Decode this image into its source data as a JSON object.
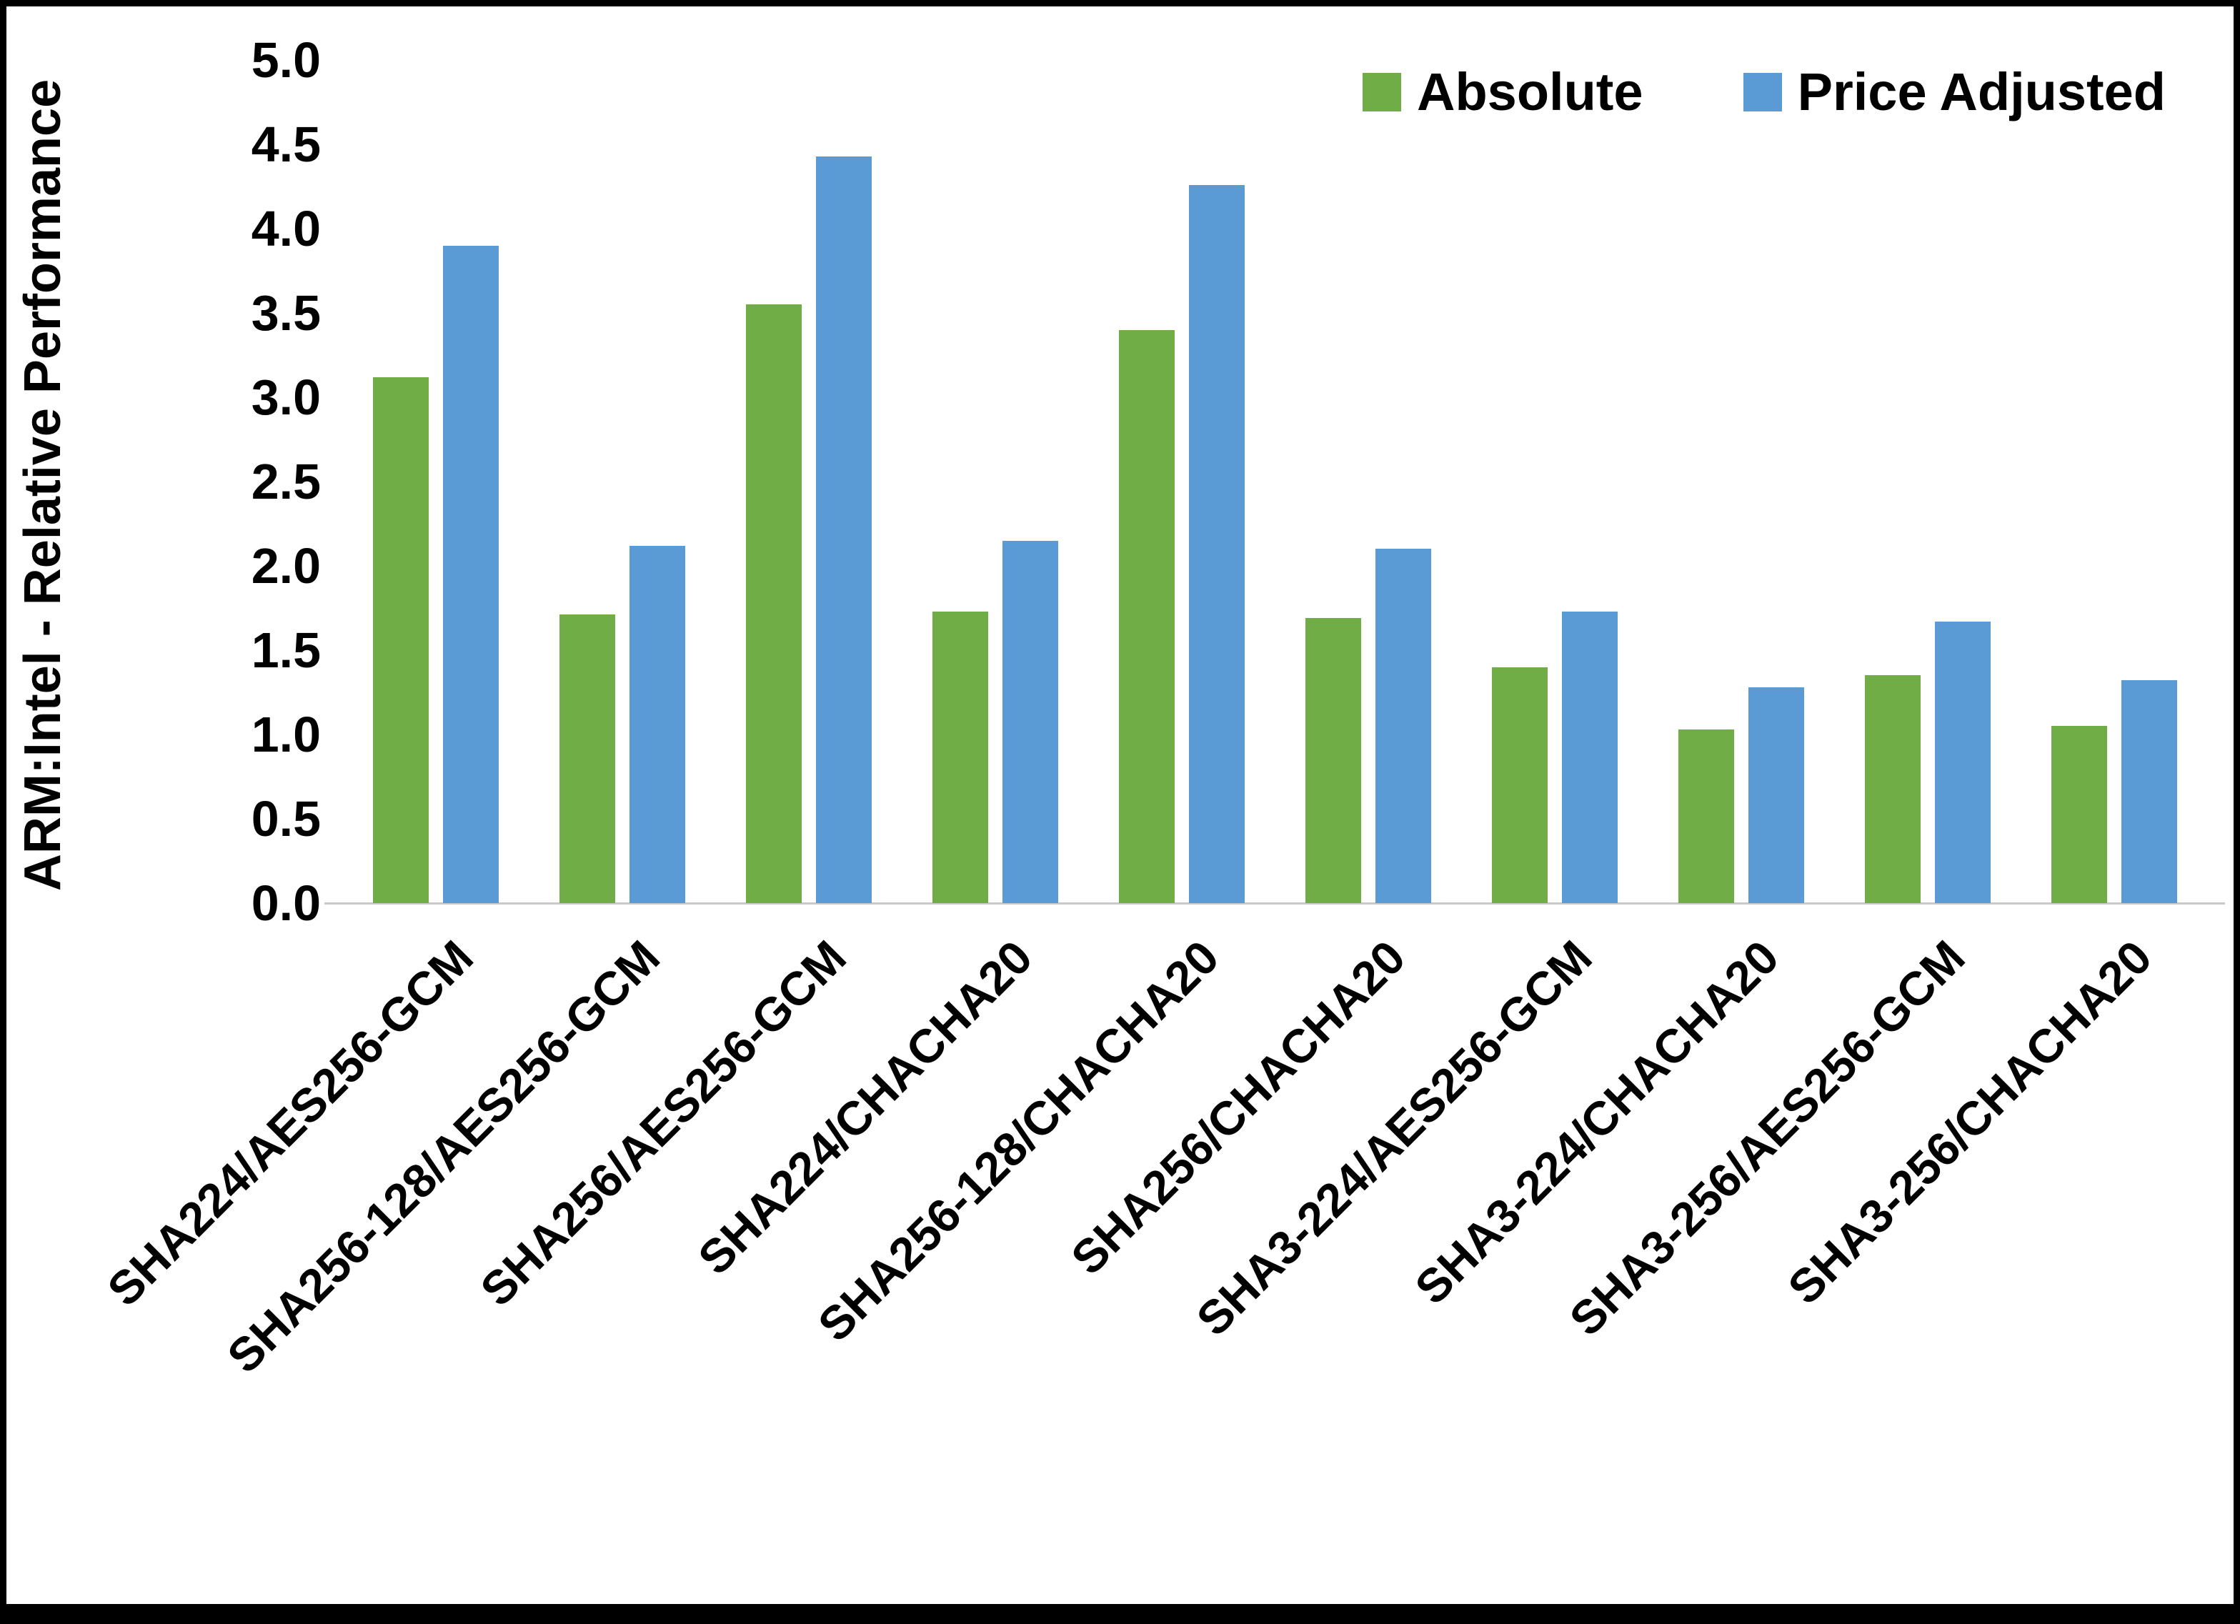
{
  "colors": {
    "absolute": "#70AD47",
    "price_adjusted": "#5B9BD5",
    "axis_line": "#C9C9C9",
    "text": "#000000",
    "border": "#000000"
  },
  "chart_data": {
    "type": "bar",
    "title": "",
    "xlabel": "",
    "ylabel": "ARM:Intel - Relative Performance",
    "ylim": [
      0,
      5
    ],
    "ytick_labels": [
      "0.0",
      "0.5",
      "1.0",
      "1.5",
      "2.0",
      "2.5",
      "3.0",
      "3.5",
      "4.0",
      "4.5",
      "5.0"
    ],
    "grid": false,
    "legend_position": "top-right",
    "categories": [
      "SHA224/AES256-GCM",
      "SHA256-128/AES256-GCM",
      "SHA256/AES256-GCM",
      "SHA224/CHACHA20",
      "SHA256-128/CHACHA20",
      "SHA256/CHACHA20",
      "SHA3-224/AES256-GCM",
      "SHA3-224/CHACHA20",
      "SHA3-256/AES256-GCM",
      "SHA3-256/CHACHA20"
    ],
    "series": [
      {
        "name": "Absolute",
        "color": "#70AD47",
        "values": [
          3.12,
          1.71,
          3.55,
          1.73,
          3.4,
          1.69,
          1.4,
          1.03,
          1.35,
          1.05
        ]
      },
      {
        "name": "Price Adjusted",
        "color": "#5B9BD5",
        "values": [
          3.9,
          2.12,
          4.43,
          2.15,
          4.26,
          2.1,
          1.73,
          1.28,
          1.67,
          1.32
        ]
      }
    ]
  }
}
